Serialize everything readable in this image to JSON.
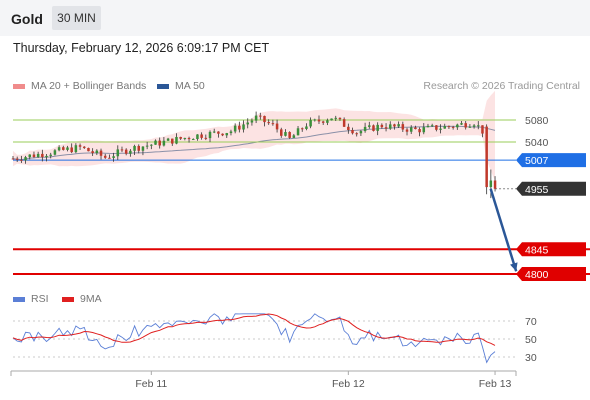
{
  "header": {
    "instrument": "Gold",
    "timeframe": "30 MIN"
  },
  "datetime": "Thursday, February 12, 2026 6:09:17 PM CET",
  "legend": {
    "items": [
      {
        "label": "MA 20 + Bollinger Bands",
        "color": "#f08c8c"
      },
      {
        "label": "MA 50",
        "color": "#2b5797"
      }
    ],
    "credit": "Research © 2026 Trading Central"
  },
  "rsi_legend": {
    "items": [
      {
        "label": "RSI",
        "color": "#5b7fd6"
      },
      {
        "label": "9MA",
        "color": "#e02020"
      }
    ]
  },
  "colors": {
    "up": "#3a8f3a",
    "down": "#c0392b",
    "resistance": "#9acd5a",
    "pivot": "#1f6fe5",
    "target": "#e00000",
    "price_tag": "#333333",
    "arrow": "#2b5797"
  },
  "chart_data": {
    "type": "candlestick",
    "xlim_index": [
      0,
      120
    ],
    "ylim": [
      4780,
      5120
    ],
    "x_ticks": [
      {
        "index": 33,
        "label": "Feb 11"
      },
      {
        "index": 80,
        "label": "Feb 12"
      },
      {
        "index": 115,
        "label": "Feb 13"
      }
    ],
    "levels": [
      {
        "value": 5080,
        "label": "5080",
        "kind": "resistance"
      },
      {
        "value": 5040,
        "label": "5040",
        "kind": "resistance"
      },
      {
        "value": 5007,
        "label": "5007",
        "kind": "pivot"
      },
      {
        "value": 4955,
        "label": "4955",
        "kind": "last_price"
      },
      {
        "value": 4845,
        "label": "4845",
        "kind": "target"
      },
      {
        "value": 4800,
        "label": "4800",
        "kind": "target"
      }
    ],
    "arrow": {
      "from": [
        113,
        4955
      ],
      "to": [
        121,
        4805
      ]
    },
    "rsi": {
      "ylim": [
        20,
        80
      ],
      "ticks": [
        70,
        50,
        30
      ]
    }
  }
}
